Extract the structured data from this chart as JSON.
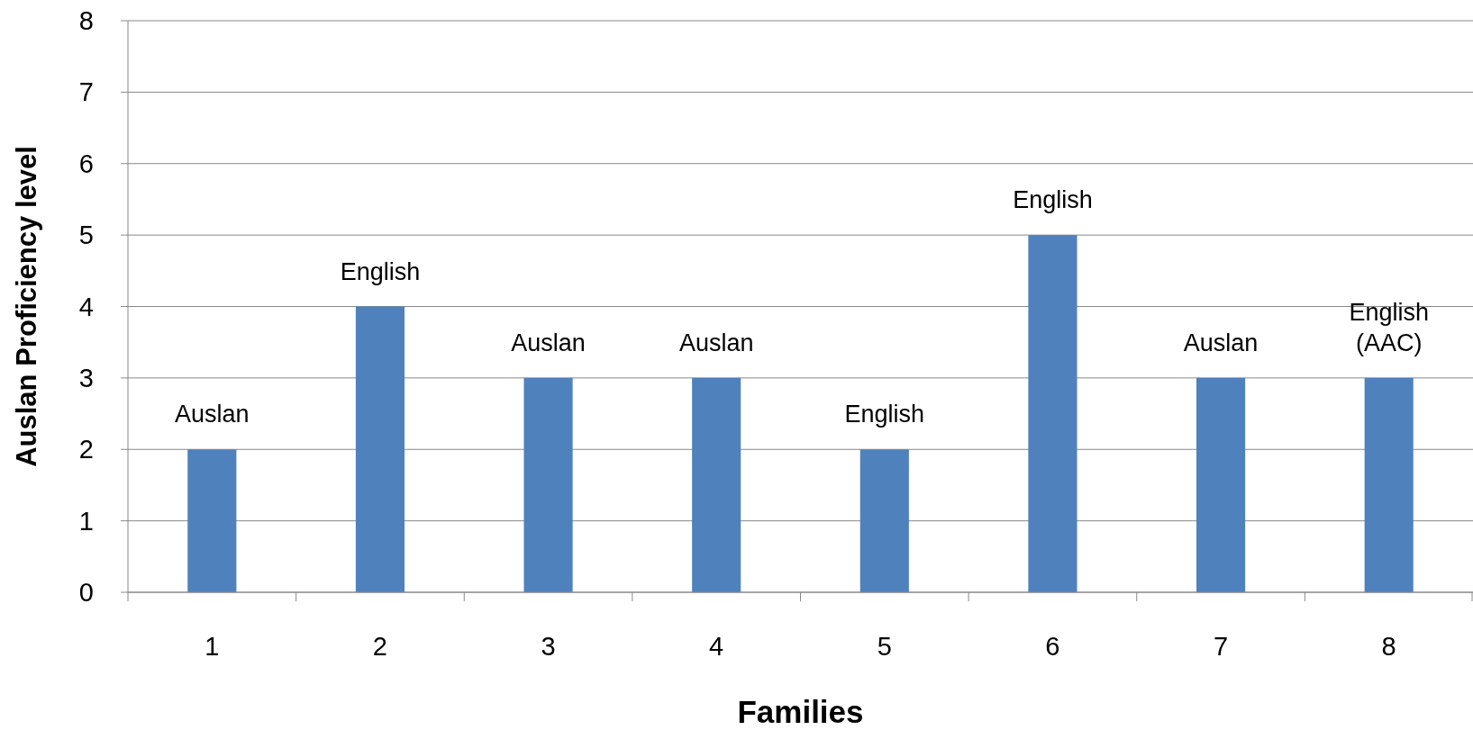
{
  "chart_data": {
    "type": "bar",
    "xlabel": "Families",
    "ylabel": "Auslan Proficiency level",
    "categories": [
      "1",
      "2",
      "3",
      "4",
      "5",
      "6",
      "7",
      "8"
    ],
    "values": [
      2,
      4,
      3,
      3,
      2,
      5,
      3,
      3
    ],
    "color": "#4f81bd",
    "ylim": [
      0,
      8
    ],
    "yticks": [
      0,
      1,
      2,
      3,
      4,
      5,
      6,
      7,
      8
    ],
    "grid": "y",
    "annotations": [
      {
        "text": "Auslan",
        "x": "1",
        "y": 2
      },
      {
        "text": "English",
        "x": "2",
        "y": 4
      },
      {
        "text": "Auslan",
        "x": "3",
        "y": 3
      },
      {
        "text": "Auslan",
        "x": "4",
        "y": 3
      },
      {
        "text": "English",
        "x": "5",
        "y": 2
      },
      {
        "text": "English",
        "x": "6",
        "y": 5
      },
      {
        "text": "Auslan",
        "x": "7",
        "y": 3
      },
      {
        "text": "English\n(AAC)",
        "x": "8",
        "y": 3
      }
    ]
  }
}
